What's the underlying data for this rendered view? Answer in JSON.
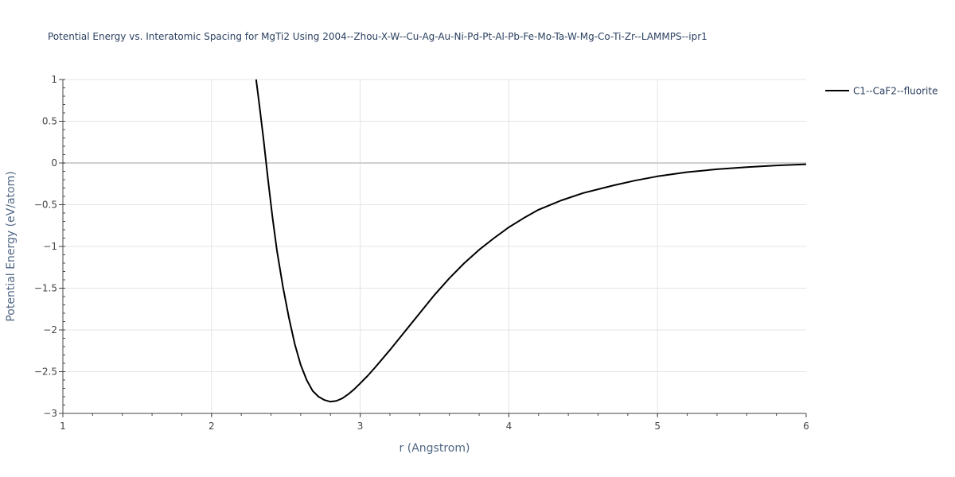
{
  "chart_data": {
    "type": "line",
    "title": "Potential Energy vs. Interatomic Spacing for MgTi2 Using 2004--Zhou-X-W--Cu-Ag-Au-Ni-Pd-Pt-Al-Pb-Fe-Mo-Ta-W-Mg-Co-Ti-Zr--LAMMPS--ipr1",
    "xlabel": "r (Angstrom)",
    "ylabel": "Potential Energy (eV/atom)",
    "xlim": [
      1,
      6
    ],
    "ylim": [
      -3,
      1
    ],
    "x_ticks": [
      "1",
      "2",
      "3",
      "4",
      "5",
      "6"
    ],
    "y_ticks": [
      "1",
      "0.5",
      "0",
      "−0.5",
      "−1",
      "−1.5",
      "−2",
      "−2.5",
      "−3"
    ],
    "grid": true,
    "legend_position": "top-right",
    "series": [
      {
        "name": "C1--CaF2--fluorite",
        "color": "#000000",
        "x": [
          2.3,
          2.32,
          2.35,
          2.38,
          2.41,
          2.44,
          2.48,
          2.52,
          2.56,
          2.6,
          2.64,
          2.68,
          2.72,
          2.76,
          2.8,
          2.84,
          2.88,
          2.92,
          2.96,
          3.0,
          3.05,
          3.1,
          3.2,
          3.3,
          3.4,
          3.5,
          3.6,
          3.7,
          3.8,
          3.9,
          4.0,
          4.1,
          4.2,
          4.35,
          4.5,
          4.7,
          4.85,
          5.0,
          5.2,
          5.4,
          5.6,
          5.8,
          6.0
        ],
        "y": [
          1.0,
          0.72,
          0.28,
          -0.2,
          -0.65,
          -1.05,
          -1.48,
          -1.85,
          -2.17,
          -2.42,
          -2.6,
          -2.73,
          -2.8,
          -2.84,
          -2.86,
          -2.85,
          -2.82,
          -2.77,
          -2.71,
          -2.64,
          -2.55,
          -2.45,
          -2.24,
          -2.02,
          -1.8,
          -1.58,
          -1.38,
          -1.2,
          -1.04,
          -0.9,
          -0.77,
          -0.66,
          -0.56,
          -0.45,
          -0.36,
          -0.27,
          -0.21,
          -0.16,
          -0.11,
          -0.075,
          -0.05,
          -0.03,
          -0.015
        ]
      }
    ]
  }
}
